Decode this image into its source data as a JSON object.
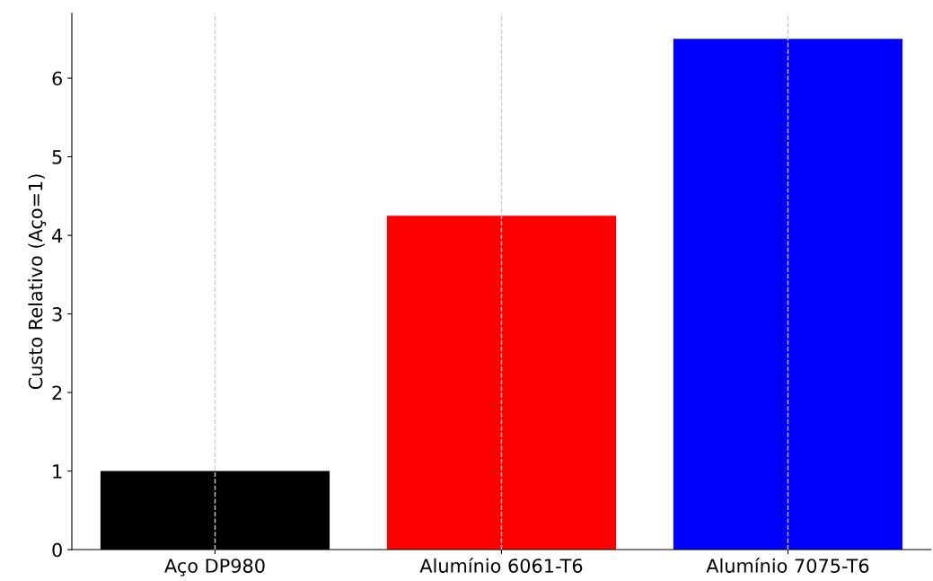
{
  "chart_data": {
    "type": "bar",
    "ylabel": "Custo Relativo (Aço=1)",
    "categories": [
      "Aço DP980",
      "Alumínio 6061-T6",
      "Alumínio 7075-T6"
    ],
    "values": [
      1,
      4.25,
      6.5
    ],
    "colors": [
      "#000000",
      "#ff0000",
      "#0000ff"
    ],
    "ylim": [
      0,
      6.825
    ],
    "yticks": [
      0,
      1,
      2,
      3,
      4,
      5,
      6
    ],
    "grid": "x"
  }
}
